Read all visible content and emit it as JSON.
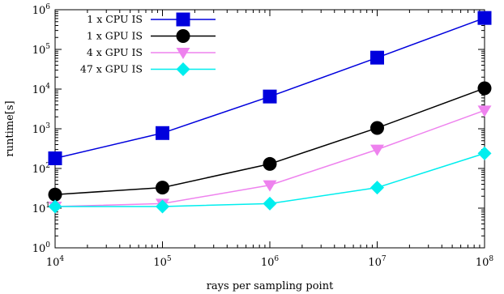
{
  "chart_data": {
    "type": "line",
    "title": "",
    "xlabel": "rays per sampling point",
    "ylabel": "runtime[s]",
    "x_scale": "log",
    "y_scale": "log",
    "xlim": [
      10000,
      100000000
    ],
    "ylim": [
      1,
      1000000
    ],
    "x_ticks": [
      {
        "value": 10000,
        "base": "10",
        "exp": "4"
      },
      {
        "value": 100000,
        "base": "10",
        "exp": "5"
      },
      {
        "value": 1000000,
        "base": "10",
        "exp": "6"
      },
      {
        "value": 10000000,
        "base": "10",
        "exp": "7"
      },
      {
        "value": 100000000,
        "base": "10",
        "exp": "8"
      }
    ],
    "y_ticks": [
      {
        "value": 1,
        "base": "10",
        "exp": "0"
      },
      {
        "value": 10,
        "base": "10",
        "exp": "1"
      },
      {
        "value": 100,
        "base": "10",
        "exp": "2"
      },
      {
        "value": 1000,
        "base": "10",
        "exp": "3"
      },
      {
        "value": 10000,
        "base": "10",
        "exp": "4"
      },
      {
        "value": 100000,
        "base": "10",
        "exp": "5"
      },
      {
        "value": 1000000,
        "base": "10",
        "exp": "6"
      }
    ],
    "legend_position": "top-left",
    "grid": false,
    "x": [
      10000,
      100000,
      1000000,
      10000000,
      100000000
    ],
    "series": [
      {
        "name": "1 x CPU IS",
        "color": "#0000dd",
        "marker": "square",
        "values": [
          180,
          780,
          6500,
          62000,
          620000
        ]
      },
      {
        "name": "1 x GPU IS",
        "color": "#000000",
        "marker": "circle",
        "values": [
          22,
          33,
          130,
          1050,
          10500
        ]
      },
      {
        "name": "4 x GPU IS",
        "color": "#ee82ee",
        "marker": "triangle-down",
        "values": [
          11,
          13,
          38,
          300,
          2900
        ]
      },
      {
        "name": "47 x GPU IS",
        "color": "#00eeee",
        "marker": "diamond",
        "values": [
          11,
          11,
          13,
          33,
          240
        ]
      }
    ]
  }
}
